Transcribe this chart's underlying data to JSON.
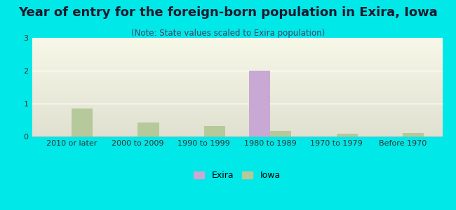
{
  "title": "Year of entry for the foreign-born population in Exira, Iowa",
  "subtitle": "(Note: State values scaled to Exira population)",
  "categories": [
    "2010 or later",
    "2000 to 2009",
    "1990 to 1999",
    "1980 to 1989",
    "1970 to 1979",
    "Before 1970"
  ],
  "exira_values": [
    0,
    0,
    0,
    2,
    0,
    0
  ],
  "iowa_values": [
    0.85,
    0.42,
    0.32,
    0.18,
    0.09,
    0.1
  ],
  "exira_color": "#c9a8d4",
  "iowa_color": "#b5c99a",
  "background_color": "#00e8e8",
  "ylim": [
    0,
    3
  ],
  "yticks": [
    0,
    1,
    2,
    3
  ],
  "bar_width": 0.32,
  "legend_exira": "Exira",
  "legend_iowa": "Iowa",
  "title_fontsize": 13,
  "subtitle_fontsize": 8.5,
  "tick_fontsize": 8,
  "grad_top": "#e8f5e0",
  "grad_bottom": "#f8fff8"
}
